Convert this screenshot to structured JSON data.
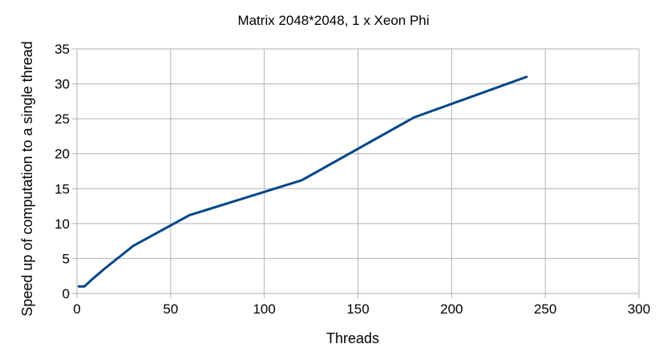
{
  "chart_data": {
    "type": "line",
    "title": "Matrix 2048*2048, 1 x Xeon Phi",
    "xlabel": "Threads",
    "ylabel": "Speed up of computation to a single thread",
    "xlim": [
      0,
      300
    ],
    "ylim": [
      0,
      35
    ],
    "xticks": [
      0,
      50,
      100,
      150,
      200,
      250,
      300
    ],
    "yticks": [
      0,
      5,
      10,
      15,
      20,
      25,
      30,
      35
    ],
    "grid": true,
    "legend": "none",
    "series": [
      {
        "color": "#004586",
        "x": [
          1,
          2,
          4,
          8,
          15,
          30,
          60,
          120,
          180,
          240
        ],
        "y": [
          1,
          1,
          1,
          2,
          3.6,
          6.8,
          11.2,
          16.2,
          25.2,
          31
        ]
      }
    ]
  },
  "style": {
    "grid_color": "#b3b3b3",
    "axis_color": "#b3b3b3",
    "line_color": "#004586"
  }
}
